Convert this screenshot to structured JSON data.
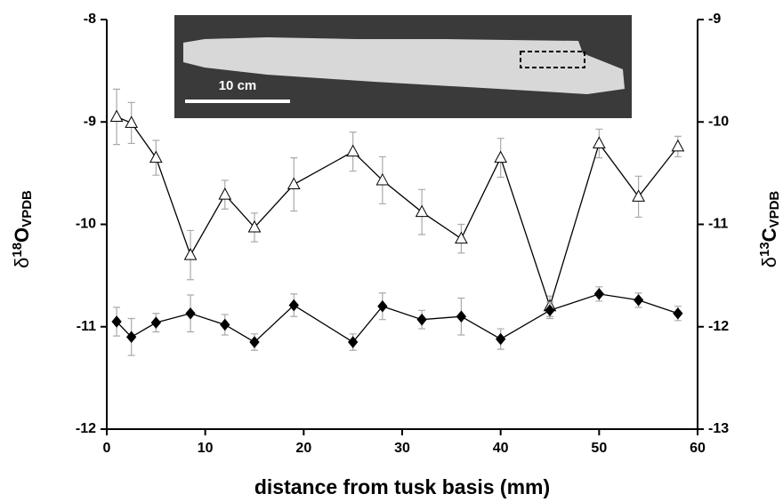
{
  "chart_data": {
    "type": "line",
    "x_label": "distance from tusk basis (mm)",
    "y_label": {
      "symbol": "δ",
      "isotope": "18",
      "element": "O",
      "subscript": "VPDB"
    },
    "y2_label": {
      "symbol": "δ",
      "isotope": "13",
      "element": "C",
      "subscript": "VPDB"
    },
    "inset_scale_label": "10 cm",
    "x": [
      1,
      2.5,
      5,
      8.5,
      12,
      15,
      19,
      25,
      28,
      32,
      36,
      40,
      45,
      50,
      54,
      58
    ],
    "series": [
      {
        "marker": "triangle",
        "color": "#000000",
        "fill": "#ffffff",
        "values": [
          -8.95,
          -9.01,
          -9.35,
          -10.3,
          -9.71,
          -10.03,
          -9.61,
          -9.29,
          -9.57,
          -9.88,
          -10.14,
          -9.35,
          -10.8,
          -9.21,
          -9.73,
          -9.24
        ],
        "errors": [
          0.27,
          0.2,
          0.17,
          0.24,
          0.14,
          0.14,
          0.26,
          0.19,
          0.23,
          0.22,
          0.14,
          0.19,
          0.1,
          0.14,
          0.2,
          0.1
        ]
      },
      {
        "marker": "diamond",
        "color": "#000000",
        "fill": "#000000",
        "axis": "y2",
        "values": [
          -11.95,
          -12.1,
          -11.96,
          -11.87,
          -11.98,
          -12.15,
          -11.79,
          -12.15,
          -11.8,
          -11.93,
          -11.9,
          -12.12,
          -11.84,
          -11.68,
          -11.74,
          -11.87
        ],
        "errors": [
          0.14,
          0.18,
          0.09,
          0.18,
          0.1,
          0.08,
          0.11,
          0.08,
          0.13,
          0.09,
          0.18,
          0.1,
          0.08,
          0.07,
          0.07,
          0.07
        ]
      }
    ],
    "xlim": [
      0,
      60
    ],
    "xticks": [
      0,
      10,
      20,
      30,
      40,
      50,
      60
    ],
    "ylim": [
      -12,
      -8
    ],
    "yticks": [
      -12,
      -11,
      -10,
      -9,
      -8
    ],
    "y2lim": [
      -13,
      -9
    ],
    "y2ticks": [
      -13,
      -12,
      -11,
      -10,
      -9
    ],
    "errorbar_color": "#aaaaaa"
  }
}
